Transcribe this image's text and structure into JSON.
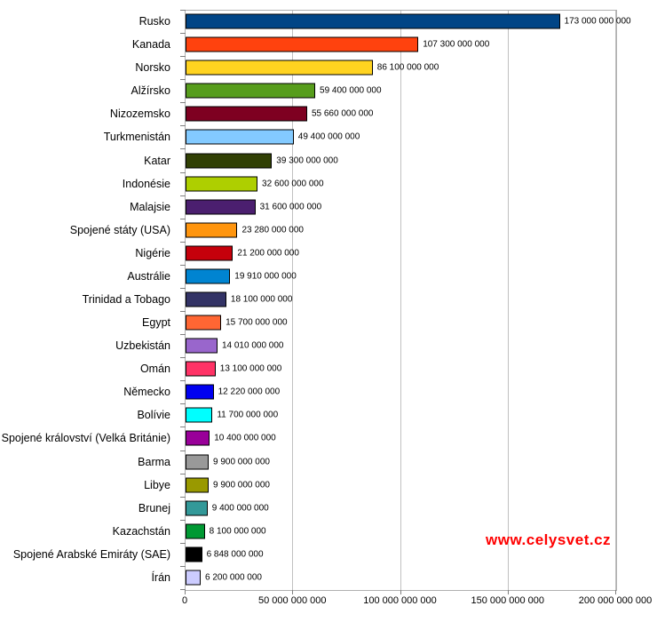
{
  "watermark": {
    "text": "www.celysvet.cz",
    "color": "#ff0000"
  },
  "chart_data": {
    "type": "bar",
    "orientation": "horizontal",
    "title": "",
    "xlabel": "",
    "ylabel": "",
    "xlim": [
      0,
      200000000000
    ],
    "grid": true,
    "legend": false,
    "colors": {
      "plot_border": "#b0b0b0",
      "gridline": "#c0c0c0",
      "tick": "#808080",
      "text": "#000000",
      "bar_border": "#000000",
      "background": "#ffffff"
    },
    "x_ticks": [
      {
        "value": 0,
        "label": "0"
      },
      {
        "value": 50000000000,
        "label": "50 000 000 000"
      },
      {
        "value": 100000000000,
        "label": "100 000 000 000"
      },
      {
        "value": 150000000000,
        "label": "150 000 000 000"
      },
      {
        "value": 200000000000,
        "label": "200 000 000 000"
      }
    ],
    "bars": [
      {
        "category": "Rusko",
        "value": 173000000000,
        "display": "173 000 000 000",
        "color": "#004586"
      },
      {
        "category": "Kanada",
        "value": 107300000000,
        "display": "107 300 000 000",
        "color": "#ff420e"
      },
      {
        "category": "Norsko",
        "value": 86100000000,
        "display": "86 100 000 000",
        "color": "#ffd320"
      },
      {
        "category": "Alžírsko",
        "value": 59400000000,
        "display": "59 400 000 000",
        "color": "#579d1c"
      },
      {
        "category": "Nizozemsko",
        "value": 55660000000,
        "display": "55 660 000 000",
        "color": "#7e0021"
      },
      {
        "category": "Turkmenistán",
        "value": 49400000000,
        "display": "49 400 000 000",
        "color": "#83caff"
      },
      {
        "category": "Katar",
        "value": 39300000000,
        "display": "39 300 000 000",
        "color": "#314004"
      },
      {
        "category": "Indonésie",
        "value": 32600000000,
        "display": "32 600 000 000",
        "color": "#aecf00"
      },
      {
        "category": "Malajsie",
        "value": 31600000000,
        "display": "31 600 000 000",
        "color": "#4b1f6f"
      },
      {
        "category": "Spojené státy (USA)",
        "value": 23280000000,
        "display": "23 280 000 000",
        "color": "#ff950e"
      },
      {
        "category": "Nigérie",
        "value": 21200000000,
        "display": "21 200 000 000",
        "color": "#c5000b"
      },
      {
        "category": "Austrálie",
        "value": 19910000000,
        "display": "19 910 000 000",
        "color": "#0084d1"
      },
      {
        "category": "Trinidad a Tobago",
        "value": 18100000000,
        "display": "18 100 000 000",
        "color": "#333366"
      },
      {
        "category": "Egypt",
        "value": 15700000000,
        "display": "15 700 000 000",
        "color": "#ff6633"
      },
      {
        "category": "Uzbekistán",
        "value": 14010000000,
        "display": "14 010 000 000",
        "color": "#9966cc"
      },
      {
        "category": "Omán",
        "value": 13100000000,
        "display": "13 100 000 000",
        "color": "#ff3366"
      },
      {
        "category": "Německo",
        "value": 12220000000,
        "display": "12 220 000 000",
        "color": "#0000f0"
      },
      {
        "category": "Bolívie",
        "value": 11700000000,
        "display": "11 700 000 000",
        "color": "#00ffff"
      },
      {
        "category": "Spojené království (Velká Británie)",
        "value": 10400000000,
        "display": "10 400 000 000",
        "color": "#990099"
      },
      {
        "category": "Barma",
        "value": 9900000000,
        "display": "9 900 000 000",
        "color": "#999999"
      },
      {
        "category": "Libye",
        "value": 9900000000,
        "display": "9 900 000 000",
        "color": "#999900"
      },
      {
        "category": "Brunej",
        "value": 9400000000,
        "display": "9 400 000 000",
        "color": "#339999"
      },
      {
        "category": "Kazachstán",
        "value": 8100000000,
        "display": "8 100 000 000",
        "color": "#009933"
      },
      {
        "category": "Spojené Arabské Emiráty (SAE)",
        "value": 6848000000,
        "display": "6 848 000 000",
        "color": "#000000"
      },
      {
        "category": "Írán",
        "value": 6200000000,
        "display": "6 200 000 000",
        "color": "#ccccff"
      }
    ]
  }
}
